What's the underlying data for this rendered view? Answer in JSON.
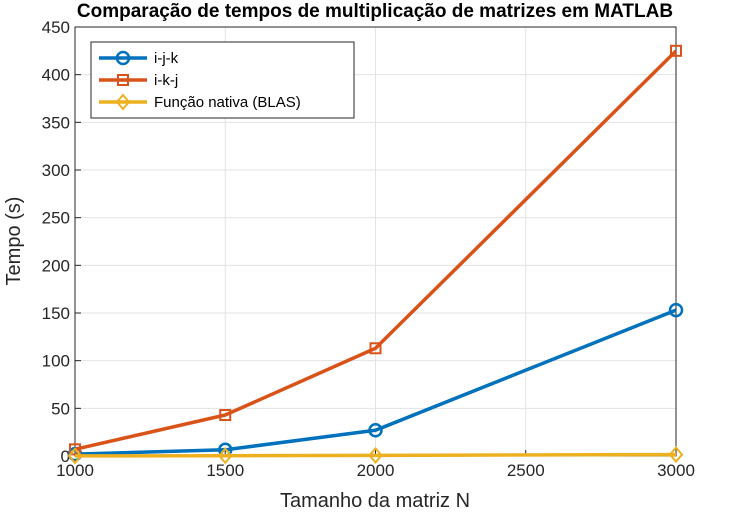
{
  "chart_data": {
    "type": "line",
    "title": "Comparação de tempos de multiplicação de matrizes em MATLAB",
    "xlabel": "Tamanho da matriz N",
    "ylabel": "Tempo (s)",
    "xlim": [
      1000,
      3000
    ],
    "ylim": [
      0,
      450
    ],
    "xticks": [
      1000,
      1500,
      2000,
      2500,
      3000
    ],
    "yticks": [
      0,
      50,
      100,
      150,
      200,
      250,
      300,
      350,
      400,
      450
    ],
    "grid": true,
    "legend_position": "top-left",
    "x": [
      1000,
      1500,
      2000,
      3000
    ],
    "series": [
      {
        "name": "i-j-k",
        "values": [
          2,
          6.5,
          27,
          153
        ],
        "color": "#0072BD",
        "marker": "circle"
      },
      {
        "name": "i-k-j",
        "values": [
          7,
          43,
          113,
          425
        ],
        "color": "#D95319",
        "marker": "square"
      },
      {
        "name": "Função nativa (BLAS)",
        "values": [
          0.1,
          0.3,
          0.6,
          1.5
        ],
        "color": "#EDB120",
        "marker": "diamond"
      }
    ]
  }
}
